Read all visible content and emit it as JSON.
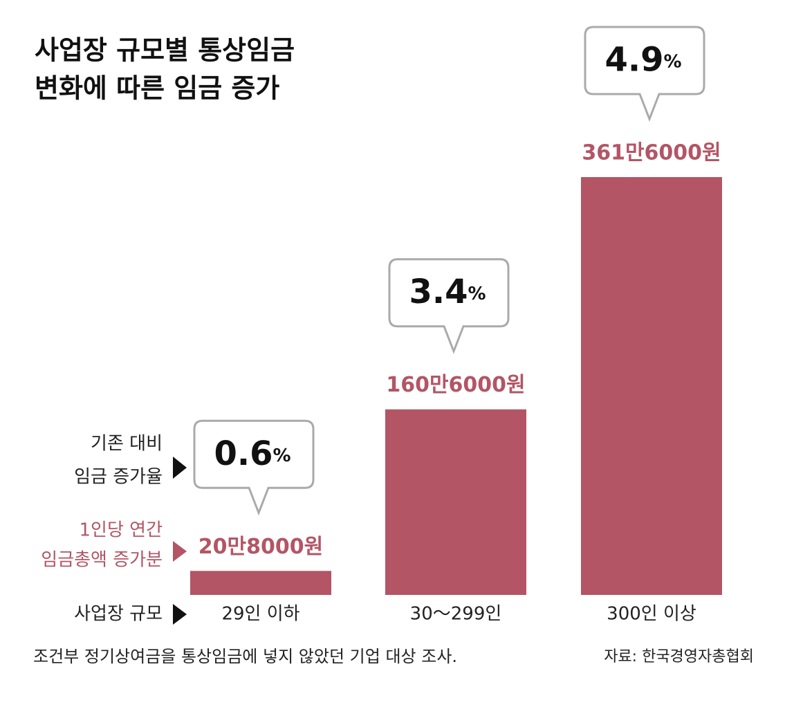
{
  "chart_data": {
    "type": "bar",
    "title": [
      "사업장 규모별 통상임금",
      "변화에 따른 임금 증가"
    ],
    "categories": [
      "29인 이하",
      "30～299인",
      "300인 이상"
    ],
    "values": [
      208000,
      1606000,
      3616000
    ],
    "value_labels": [
      "20만8000원",
      "160만6000원",
      "361만6000원"
    ],
    "color": "#b35565",
    "rates": [
      0.6,
      3.4,
      4.9
    ],
    "rate_unit": "%",
    "row_labels": {
      "rate": [
        "기존 대비",
        "임금 증가율"
      ],
      "amount": [
        "1인당 연간",
        "임금총액 증가분"
      ],
      "category": "사업장 규모"
    },
    "note": "조건부 정기상여금을 통상임금에 넣지 않았던 기업 대상 조사.",
    "source": "자료: 한국경영자총협회"
  }
}
